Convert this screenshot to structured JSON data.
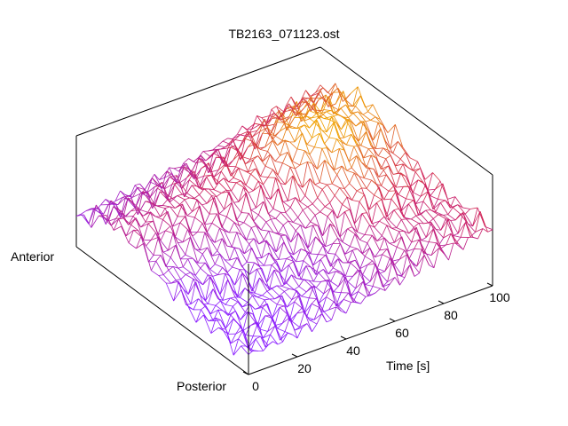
{
  "chart_data": {
    "type": "surface",
    "title": "TB2163_071123.ost",
    "x_axis": {
      "label": "Time [s]",
      "range": [
        0,
        100
      ],
      "ticks": [
        "0",
        "20",
        "40",
        "60",
        "80",
        "100"
      ]
    },
    "y_axis": {
      "labels": [
        "Anterior",
        "Posterior"
      ]
    },
    "z_axis": {
      "label": "",
      "ticks": []
    },
    "grid": false,
    "legend": "none",
    "colors": {
      "low": "#8b1fff",
      "mid": "#d0205a",
      "high": "#f0a000"
    },
    "surface": {
      "time_samples": 51,
      "profile_samples": 24,
      "description_of_shape": "noisy ridged surface rising toward high time values near the anterior edge"
    }
  }
}
